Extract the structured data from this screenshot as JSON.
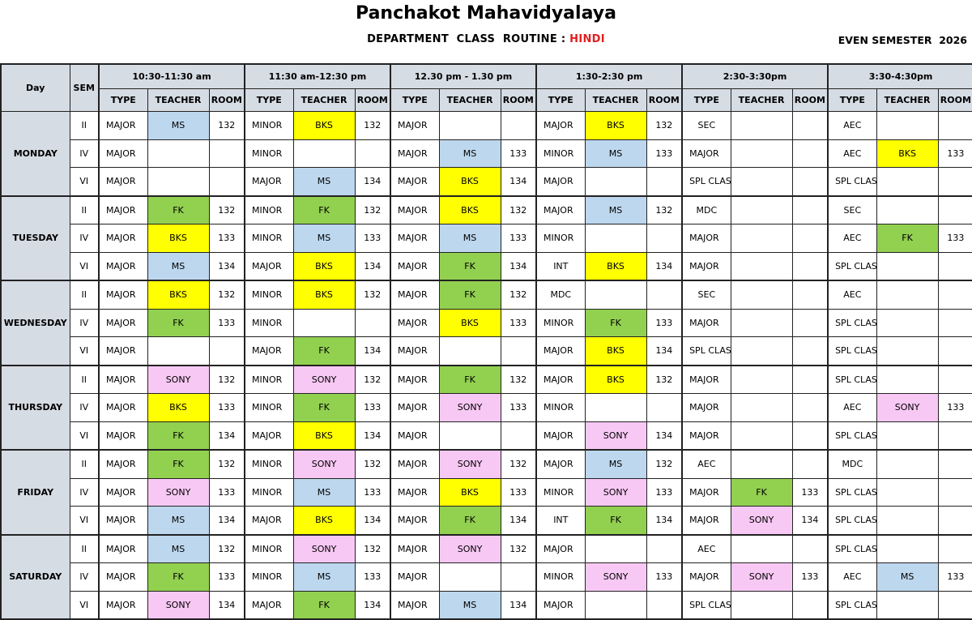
{
  "header": {
    "title": "Panchakot Mahavidyalaya",
    "subtitle_prefix": "DEPARTMENT  CLASS  ROUTINE : ",
    "department": "HINDI",
    "semester": "EVEN SEMESTER  2026"
  },
  "colors": {
    "department": "#e02020",
    "header_bg": "#d6dce4"
  },
  "teacher_colors": {
    "MS": "#bdd7ee",
    "BKS": "#ffff00",
    "FK": "#92d050",
    "SONY": "#f8c8f4"
  },
  "columns": {
    "day": "Day",
    "sem": "SEM",
    "slots": [
      "10:30-11:30 am",
      "11:30 am-12:30 pm",
      "12.30 pm - 1.30 pm",
      "1:30-2:30 pm",
      "2:30-3:30pm",
      "3:30-4:30pm"
    ],
    "sub": [
      "TYPE",
      "TEACHER",
      "ROOM"
    ]
  },
  "days": [
    {
      "day": "MONDAY",
      "rows": [
        {
          "sem": "II",
          "cells": [
            [
              "MAJOR",
              "MS",
              "132"
            ],
            [
              "MINOR",
              "BKS",
              "132"
            ],
            [
              "MAJOR",
              "",
              ""
            ],
            [
              "MAJOR",
              "BKS",
              "132"
            ],
            [
              "SEC",
              "",
              ""
            ],
            [
              "AEC",
              "",
              ""
            ]
          ]
        },
        {
          "sem": "IV",
          "cells": [
            [
              "MAJOR",
              "",
              ""
            ],
            [
              "MINOR",
              "",
              ""
            ],
            [
              "MAJOR",
              "MS",
              "133"
            ],
            [
              "MINOR",
              "MS",
              "133"
            ],
            [
              "MAJOR",
              "",
              ""
            ],
            [
              "AEC",
              "BKS",
              "133"
            ]
          ]
        },
        {
          "sem": "VI",
          "cells": [
            [
              "MAJOR",
              "",
              ""
            ],
            [
              "MAJOR",
              "MS",
              "134"
            ],
            [
              "MAJOR",
              "BKS",
              "134"
            ],
            [
              "MAJOR",
              "",
              ""
            ],
            [
              "SPL CLASS",
              "",
              ""
            ],
            [
              "SPL CLASS",
              "",
              ""
            ]
          ]
        }
      ]
    },
    {
      "day": "TUESDAY",
      "rows": [
        {
          "sem": "II",
          "cells": [
            [
              "MAJOR",
              "FK",
              "132"
            ],
            [
              "MINOR",
              "FK",
              "132"
            ],
            [
              "MAJOR",
              "BKS",
              "132"
            ],
            [
              "MAJOR",
              "MS",
              "132"
            ],
            [
              "MDC",
              "",
              ""
            ],
            [
              "SEC",
              "",
              ""
            ]
          ]
        },
        {
          "sem": "IV",
          "cells": [
            [
              "MAJOR",
              "BKS",
              "133"
            ],
            [
              "MINOR",
              "MS",
              "133"
            ],
            [
              "MAJOR",
              "MS",
              "133"
            ],
            [
              "MINOR",
              "",
              ""
            ],
            [
              "MAJOR",
              "",
              ""
            ],
            [
              "AEC",
              "FK",
              "133"
            ]
          ]
        },
        {
          "sem": "VI",
          "cells": [
            [
              "MAJOR",
              "MS",
              "134"
            ],
            [
              "MAJOR",
              "BKS",
              "134"
            ],
            [
              "MAJOR",
              "FK",
              "134"
            ],
            [
              "INT",
              "BKS",
              "134"
            ],
            [
              "MAJOR",
              "",
              ""
            ],
            [
              "SPL CLASS",
              "",
              ""
            ]
          ]
        }
      ]
    },
    {
      "day": "WEDNESDAY",
      "rows": [
        {
          "sem": "II",
          "cells": [
            [
              "MAJOR",
              "BKS",
              "132"
            ],
            [
              "MINOR",
              "BKS",
              "132"
            ],
            [
              "MAJOR",
              "FK",
              "132"
            ],
            [
              "MDC",
              "",
              ""
            ],
            [
              "SEC",
              "",
              ""
            ],
            [
              "AEC",
              "",
              ""
            ]
          ]
        },
        {
          "sem": "IV",
          "cells": [
            [
              "MAJOR",
              "FK",
              "133"
            ],
            [
              "MINOR",
              "",
              ""
            ],
            [
              "MAJOR",
              "BKS",
              "133"
            ],
            [
              "MINOR",
              "FK",
              "133"
            ],
            [
              "MAJOR",
              "",
              ""
            ],
            [
              "SPL CLASS",
              "",
              ""
            ]
          ]
        },
        {
          "sem": "VI",
          "cells": [
            [
              "MAJOR",
              "",
              ""
            ],
            [
              "MAJOR",
              "FK",
              "134"
            ],
            [
              "MAJOR",
              "",
              ""
            ],
            [
              "MAJOR",
              "BKS",
              "134"
            ],
            [
              "SPL CLASS",
              "",
              ""
            ],
            [
              "SPL CLASS",
              "",
              ""
            ]
          ]
        }
      ]
    },
    {
      "day": "THURSDAY",
      "rows": [
        {
          "sem": "II",
          "cells": [
            [
              "MAJOR",
              "SONY",
              "132"
            ],
            [
              "MINOR",
              "SONY",
              "132"
            ],
            [
              "MAJOR",
              "FK",
              "132"
            ],
            [
              "MAJOR",
              "BKS",
              "132"
            ],
            [
              "MAJOR",
              "",
              ""
            ],
            [
              "SPL CLASS",
              "",
              ""
            ]
          ]
        },
        {
          "sem": "IV",
          "cells": [
            [
              "MAJOR",
              "BKS",
              "133"
            ],
            [
              "MINOR",
              "FK",
              "133"
            ],
            [
              "MAJOR",
              "SONY",
              "133"
            ],
            [
              "MINOR",
              "",
              ""
            ],
            [
              "MAJOR",
              "",
              ""
            ],
            [
              "AEC",
              "SONY",
              "133"
            ]
          ]
        },
        {
          "sem": "VI",
          "cells": [
            [
              "MAJOR",
              "FK",
              "134"
            ],
            [
              "MAJOR",
              "BKS",
              "134"
            ],
            [
              "MAJOR",
              "",
              ""
            ],
            [
              "MAJOR",
              "SONY",
              "134"
            ],
            [
              "MAJOR",
              "",
              ""
            ],
            [
              "SPL CLASS",
              "",
              ""
            ]
          ]
        }
      ]
    },
    {
      "day": "FRIDAY",
      "rows": [
        {
          "sem": "II",
          "cells": [
            [
              "MAJOR",
              "FK",
              "132"
            ],
            [
              "MINOR",
              "SONY",
              "132"
            ],
            [
              "MAJOR",
              "SONY",
              "132"
            ],
            [
              "MAJOR",
              "MS",
              "132"
            ],
            [
              "AEC",
              "",
              ""
            ],
            [
              "MDC",
              "",
              ""
            ]
          ]
        },
        {
          "sem": "IV",
          "cells": [
            [
              "MAJOR",
              "SONY",
              "133"
            ],
            [
              "MINOR",
              "MS",
              "133"
            ],
            [
              "MAJOR",
              "BKS",
              "133"
            ],
            [
              "MINOR",
              "SONY",
              "133"
            ],
            [
              "MAJOR",
              "FK",
              "133"
            ],
            [
              "SPL CLASS",
              "",
              ""
            ]
          ]
        },
        {
          "sem": "VI",
          "cells": [
            [
              "MAJOR",
              "MS",
              "134"
            ],
            [
              "MAJOR",
              "BKS",
              "134"
            ],
            [
              "MAJOR",
              "FK",
              "134"
            ],
            [
              "INT",
              "FK",
              "134"
            ],
            [
              "MAJOR",
              "SONY",
              "134"
            ],
            [
              "SPL CLASS",
              "",
              ""
            ]
          ]
        }
      ]
    },
    {
      "day": "SATURDAY",
      "rows": [
        {
          "sem": "II",
          "cells": [
            [
              "MAJOR",
              "MS",
              "132"
            ],
            [
              "MINOR",
              "SONY",
              "132"
            ],
            [
              "MAJOR",
              "SONY",
              "132"
            ],
            [
              "MAJOR",
              "",
              ""
            ],
            [
              "AEC",
              "",
              ""
            ],
            [
              "SPL CLASS",
              "",
              ""
            ]
          ]
        },
        {
          "sem": "IV",
          "cells": [
            [
              "MAJOR",
              "FK",
              "133"
            ],
            [
              "MINOR",
              "MS",
              "133"
            ],
            [
              "MAJOR",
              "",
              ""
            ],
            [
              "MINOR",
              "SONY",
              "133"
            ],
            [
              "MAJOR",
              "SONY",
              "133"
            ],
            [
              "AEC",
              "MS",
              "133"
            ]
          ]
        },
        {
          "sem": "VI",
          "cells": [
            [
              "MAJOR",
              "SONY",
              "134"
            ],
            [
              "MAJOR",
              "FK",
              "134"
            ],
            [
              "MAJOR",
              "MS",
              "134"
            ],
            [
              "MAJOR",
              "",
              ""
            ],
            [
              "SPL CLASS",
              "",
              ""
            ],
            [
              "SPL CLASS",
              "",
              ""
            ]
          ]
        }
      ]
    }
  ]
}
